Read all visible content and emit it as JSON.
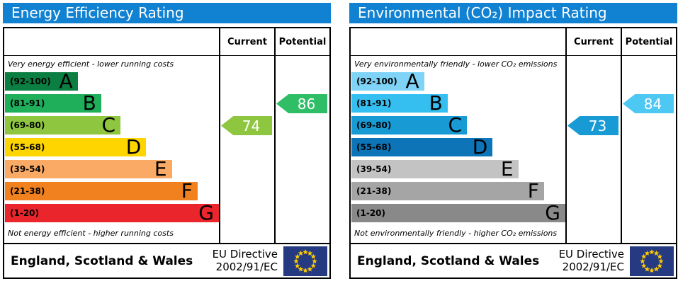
{
  "theme": {
    "header_bg": "#1181d2",
    "header_text": "#ffffff",
    "border": "#000000",
    "flag_field": "#253a80",
    "flag_stars": "#ffcc00",
    "arrow_text": "#ffffff"
  },
  "chart_data": [
    {
      "type": "bar",
      "title": "Energy Efficiency Rating",
      "columns": {
        "current": "Current",
        "potential": "Potential"
      },
      "top_note": "Very energy efficient - lower running costs",
      "bottom_note": "Not energy efficient - higher running costs",
      "bands": [
        {
          "label": "A",
          "range": "(92-100)",
          "min": 92,
          "max": 100,
          "color": "#0b7e41",
          "width_pct": 34
        },
        {
          "label": "B",
          "range": "(81-91)",
          "min": 81,
          "max": 91,
          "color": "#1fae5a",
          "width_pct": 45
        },
        {
          "label": "C",
          "range": "(69-80)",
          "min": 69,
          "max": 80,
          "color": "#8ec63f",
          "width_pct": 54
        },
        {
          "label": "D",
          "range": "(55-68)",
          "min": 55,
          "max": 68,
          "color": "#ffd500",
          "width_pct": 66
        },
        {
          "label": "E",
          "range": "(39-54)",
          "min": 39,
          "max": 54,
          "color": "#fbaa65",
          "width_pct": 78
        },
        {
          "label": "F",
          "range": "(21-38)",
          "min": 21,
          "max": 38,
          "color": "#f1811f",
          "width_pct": 90
        },
        {
          "label": "G",
          "range": "(1-20)",
          "min": 1,
          "max": 20,
          "color": "#ea252b",
          "width_pct": 100
        }
      ],
      "current": {
        "value": 74,
        "band": "C",
        "color": "#8ec63f"
      },
      "potential": {
        "value": 86,
        "band": "B",
        "color": "#2fbe66"
      },
      "footer": {
        "region": "England, Scotland & Wales",
        "directive_line1": "EU Directive",
        "directive_line2": "2002/91/EC"
      }
    },
    {
      "type": "bar",
      "title": "Environmental (CO₂) Impact Rating",
      "columns": {
        "current": "Current",
        "potential": "Potential"
      },
      "top_note": "Very environmentally friendly - lower CO₂ emissions",
      "bottom_note": "Not environmentally friendly - higher CO₂ emissions",
      "bands": [
        {
          "label": "A",
          "range": "(92-100)",
          "min": 92,
          "max": 100,
          "color": "#7ed3f7",
          "width_pct": 34
        },
        {
          "label": "B",
          "range": "(81-91)",
          "min": 81,
          "max": 91,
          "color": "#35bff1",
          "width_pct": 45
        },
        {
          "label": "C",
          "range": "(69-80)",
          "min": 69,
          "max": 80,
          "color": "#189bd4",
          "width_pct": 54
        },
        {
          "label": "D",
          "range": "(55-68)",
          "min": 55,
          "max": 68,
          "color": "#0d74b8",
          "width_pct": 66
        },
        {
          "label": "E",
          "range": "(39-54)",
          "min": 39,
          "max": 54,
          "color": "#c3c3c3",
          "width_pct": 78
        },
        {
          "label": "F",
          "range": "(21-38)",
          "min": 21,
          "max": 38,
          "color": "#a5a5a5",
          "width_pct": 90
        },
        {
          "label": "G",
          "range": "(1-20)",
          "min": 1,
          "max": 20,
          "color": "#898989",
          "width_pct": 100
        }
      ],
      "current": {
        "value": 73,
        "band": "C",
        "color": "#189bd4"
      },
      "potential": {
        "value": 84,
        "band": "B",
        "color": "#4cc8f3"
      },
      "footer": {
        "region": "England, Scotland & Wales",
        "directive_line1": "EU Directive",
        "directive_line2": "2002/91/EC"
      }
    }
  ]
}
